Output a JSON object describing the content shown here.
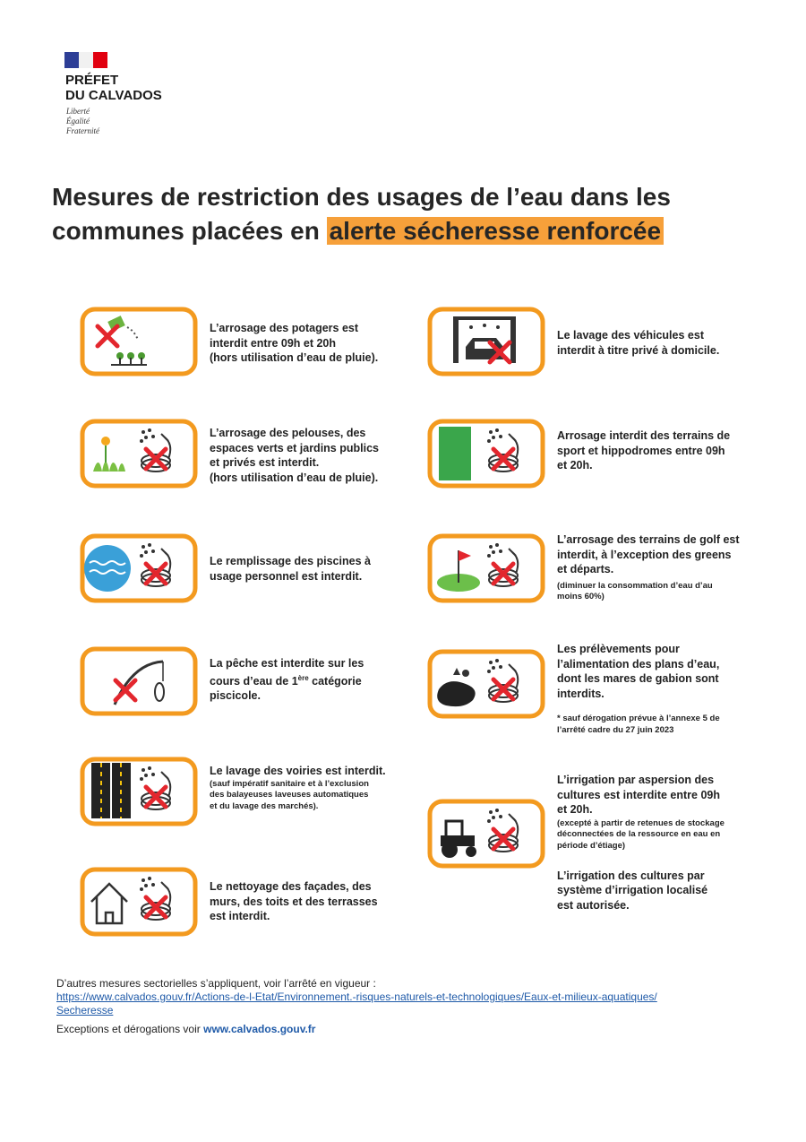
{
  "header": {
    "name_lines": [
      "PRÉFET",
      "DU CALVADOS"
    ],
    "motto": [
      "Liberté",
      "Égalité",
      "Fraternité"
    ]
  },
  "title": {
    "line1": "Mesures de restriction des usages de l’eau dans les",
    "line2": "communes placées en",
    "highlight": "alerte sécheresse renforcée"
  },
  "measures": {
    "left": [
      {
        "lines": [
          "L’arrosage des potagers est",
          "interdit entre 09h et 20h",
          "(hors utilisation d’eau de pluie)."
        ]
      },
      {
        "lines": [
          "L’arrosage des pelouses, des",
          "espaces verts et jardins publics",
          "et privés est interdit.",
          "(hors utilisation d’eau de pluie)."
        ]
      },
      {
        "lines": [
          "Le remplissage des piscines à",
          "usage personnel est interdit."
        ]
      },
      {
        "lines": [
          "La pêche est interdite sur les",
          [
            {
              "text": "cours d’eau de 1",
              "style": "normal"
            },
            {
              "text": "ère",
              "style": "sup"
            },
            {
              "text": " catégorie",
              "style": "normal"
            }
          ],
          "piscicole."
        ]
      },
      {
        "lines": [
          "Le lavage des voiries est interdit."
        ],
        "notes": [
          "(sauf impératif sanitaire et à l’exclusion",
          "des balayeuses laveuses automatiques",
          "et du lavage des marchés)."
        ]
      },
      {
        "lines": [
          "Le nettoyage des façades, des",
          "murs, des toits et des terrasses",
          "est interdit."
        ]
      }
    ],
    "right": [
      {
        "lines": [
          "Le lavage des véhicules est",
          "interdit à titre privé à domicile."
        ]
      },
      {
        "lines": [
          "Arrosage interdit des terrains de",
          "sport et hippodromes entre 09h",
          "et 20h."
        ]
      },
      {
        "lines": [
          "L’arrosage des terrains de golf est",
          "interdit, à l’exception des greens",
          "et départs."
        ],
        "notes": [
          "(diminuer la consommation d’eau d’au",
          "moins 60%)"
        ]
      },
      {
        "lines": [
          "Les prélèvements pour",
          "l’alimentation des plans d’eau,",
          "dont les mares de gabion sont",
          "interdits."
        ],
        "notes": [
          "* sauf dérogation prévue à l’annexe 5 de",
          "l’arrêté cadre du 27 juin 2023"
        ]
      },
      {
        "lines": [
          "L’irrigation par aspersion des",
          "cultures est interdite entre 09h",
          "et 20h."
        ],
        "notes": [
          "(excepté à partir de retenues de stockage",
          "déconnectées de la ressource en eau en",
          "période d’étiage)"
        ],
        "after": [
          "L’irrigation des cultures par",
          "système d’irrigation localisé",
          "est autorisée."
        ]
      }
    ]
  },
  "footer": {
    "intro": "D’autres mesures sectorielles s’appliquent, voir l’arrêté en vigueur :",
    "url_lines": [
      "https://www.calvados.gouv.fr/Actions-de-l-Etat/Environnement.-risques-naturels-et-technologiques/Eaux-et-milieux-aquatiques/",
      "Secheresse"
    ],
    "exceptions": "Exceptions et dérogations voir",
    "exceptions_link": "www.calvados.gouv.fr"
  }
}
